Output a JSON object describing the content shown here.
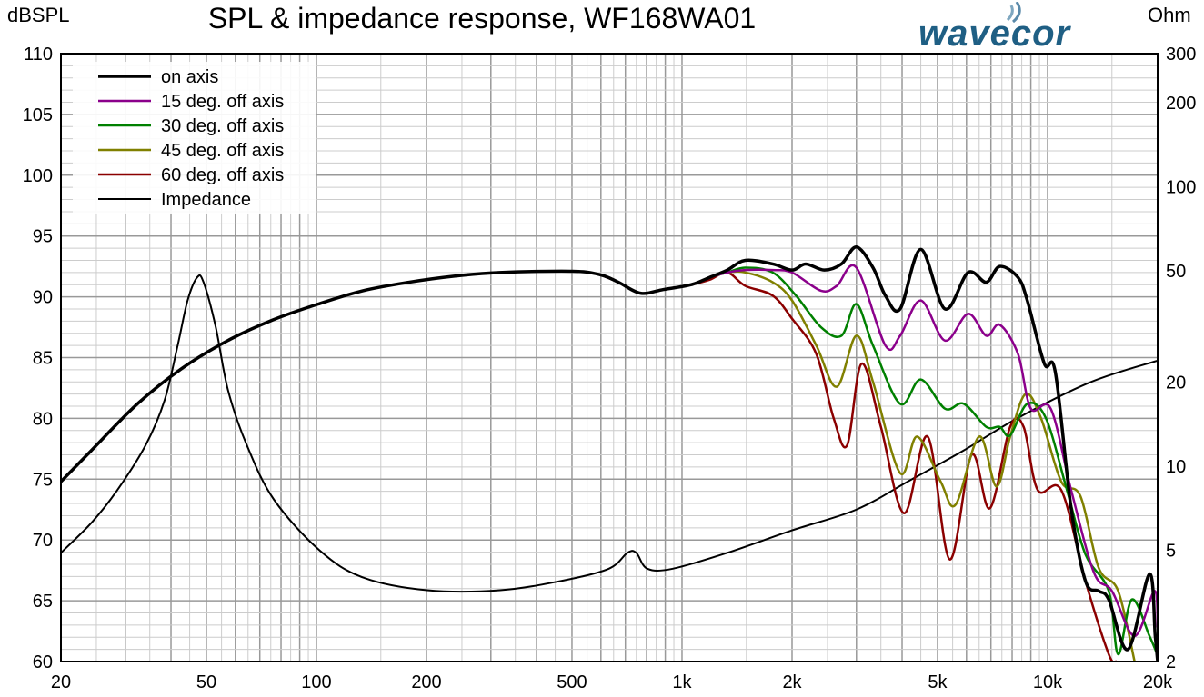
{
  "chart_data": {
    "type": "line",
    "title": "SPL & impedance response, WF168WA01",
    "ylabel": "dBSPL",
    "y2label": "Ohm",
    "brand": "wavecor",
    "xscale": "log",
    "xlim": [
      20,
      20000
    ],
    "ylim": [
      60,
      110
    ],
    "y2lim": [
      2,
      300
    ],
    "y2scale": "log",
    "grid": true,
    "legend_position": "top-left",
    "x_ticks": [
      {
        "v": 20,
        "label": "20"
      },
      {
        "v": 50,
        "label": "50"
      },
      {
        "v": 100,
        "label": "100"
      },
      {
        "v": 200,
        "label": "200"
      },
      {
        "v": 500,
        "label": "500"
      },
      {
        "v": 1000,
        "label": "1k"
      },
      {
        "v": 2000,
        "label": "2k"
      },
      {
        "v": 5000,
        "label": "5k"
      },
      {
        "v": 10000,
        "label": "10k"
      },
      {
        "v": 20000,
        "label": "20k"
      }
    ],
    "y_ticks": [
      {
        "v": 60,
        "label": "60"
      },
      {
        "v": 65,
        "label": "65"
      },
      {
        "v": 70,
        "label": "70"
      },
      {
        "v": 75,
        "label": "75"
      },
      {
        "v": 80,
        "label": "80"
      },
      {
        "v": 85,
        "label": "85"
      },
      {
        "v": 90,
        "label": "90"
      },
      {
        "v": 95,
        "label": "95"
      },
      {
        "v": 100,
        "label": "100"
      },
      {
        "v": 105,
        "label": "105"
      },
      {
        "v": 110,
        "label": "110"
      }
    ],
    "y2_ticks": [
      {
        "v": 2,
        "label": "2"
      },
      {
        "v": 5,
        "label": "5"
      },
      {
        "v": 10,
        "label": "10"
      },
      {
        "v": 20,
        "label": "20"
      },
      {
        "v": 50,
        "label": "50"
      },
      {
        "v": 100,
        "label": "100"
      },
      {
        "v": 200,
        "label": "200"
      },
      {
        "v": 300,
        "label": "300"
      }
    ],
    "series": [
      {
        "name": "on axis",
        "color": "#000000",
        "width": 3.5,
        "axis": "left",
        "points": [
          [
            20,
            74.8
          ],
          [
            24.3,
            77.4
          ],
          [
            32.4,
            81.2
          ],
          [
            42.8,
            84.1
          ],
          [
            57.2,
            86.4
          ],
          [
            76,
            88.1
          ],
          [
            101,
            89.4
          ],
          [
            134,
            90.5
          ],
          [
            179,
            91.2
          ],
          [
            238,
            91.7
          ],
          [
            317,
            92.0
          ],
          [
            502,
            92.1
          ],
          [
            600,
            91.8
          ],
          [
            670,
            91.2
          ],
          [
            770,
            90.3
          ],
          [
            890,
            90.6
          ],
          [
            1060,
            91.0
          ],
          [
            1190,
            91.6
          ],
          [
            1330,
            92.2
          ],
          [
            1490,
            93.0
          ],
          [
            1770,
            92.7
          ],
          [
            2000,
            92.2
          ],
          [
            2180,
            92.7
          ],
          [
            2450,
            92.2
          ],
          [
            2730,
            92.7
          ],
          [
            3000,
            94.1
          ],
          [
            3330,
            92.4
          ],
          [
            3600,
            90.1
          ],
          [
            3950,
            89.0
          ],
          [
            4500,
            93.9
          ],
          [
            5240,
            89.0
          ],
          [
            6060,
            92.0
          ],
          [
            6800,
            91.2
          ],
          [
            7400,
            92.5
          ],
          [
            8300,
            91.6
          ],
          [
            8800,
            89.7
          ],
          [
            9800,
            84.5
          ],
          [
            10500,
            83.8
          ],
          [
            11600,
            72.6
          ],
          [
            12700,
            66.6
          ],
          [
            13800,
            65.8
          ],
          [
            14700,
            65.1
          ],
          [
            16600,
            61.0
          ],
          [
            19000,
            67.2
          ],
          [
            19700,
            62.1
          ],
          [
            20000,
            60
          ]
        ]
      },
      {
        "name": "15 deg. off axis",
        "color": "#8b008b",
        "width": 2.5,
        "axis": "left",
        "points": [
          [
            600,
            91.8
          ],
          [
            670,
            91.2
          ],
          [
            770,
            90.3
          ],
          [
            890,
            90.6
          ],
          [
            1060,
            91.0
          ],
          [
            1190,
            91.6
          ],
          [
            1330,
            92.0
          ],
          [
            1490,
            92.2
          ],
          [
            1770,
            92.2
          ],
          [
            2000,
            92.0
          ],
          [
            2400,
            90.5
          ],
          [
            2650,
            90.9
          ],
          [
            3000,
            92.4
          ],
          [
            3600,
            86.0
          ],
          [
            3950,
            86.8
          ],
          [
            4500,
            89.7
          ],
          [
            5240,
            86.4
          ],
          [
            6060,
            88.6
          ],
          [
            6800,
            86.8
          ],
          [
            7400,
            87.7
          ],
          [
            8300,
            85.3
          ],
          [
            9000,
            80.8
          ],
          [
            10200,
            80.8
          ],
          [
            11600,
            74.1
          ],
          [
            13400,
            67.3
          ],
          [
            15000,
            65.8
          ],
          [
            17300,
            62.1
          ],
          [
            19600,
            65.8
          ],
          [
            20000,
            62.8
          ]
        ]
      },
      {
        "name": "30 deg. off axis",
        "color": "#008000",
        "width": 2.5,
        "axis": "left",
        "points": [
          [
            600,
            91.8
          ],
          [
            670,
            91.2
          ],
          [
            770,
            90.3
          ],
          [
            890,
            90.6
          ],
          [
            1060,
            91.0
          ],
          [
            1190,
            91.6
          ],
          [
            1330,
            92.0
          ],
          [
            1490,
            92.4
          ],
          [
            1770,
            92.0
          ],
          [
            2050,
            90.1
          ],
          [
            2400,
            87.5
          ],
          [
            2730,
            86.8
          ],
          [
            3000,
            89.4
          ],
          [
            3330,
            86.0
          ],
          [
            3950,
            81.2
          ],
          [
            4500,
            83.2
          ],
          [
            5240,
            80.8
          ],
          [
            5900,
            81.2
          ],
          [
            6800,
            79.3
          ],
          [
            7400,
            79.3
          ],
          [
            7900,
            78.6
          ],
          [
            8800,
            81.2
          ],
          [
            9900,
            80.0
          ],
          [
            11300,
            74.1
          ],
          [
            12700,
            68.8
          ],
          [
            14700,
            65.8
          ],
          [
            15600,
            60.6
          ],
          [
            17000,
            65.1
          ],
          [
            19000,
            62.1
          ],
          [
            20000,
            60.5
          ]
        ]
      },
      {
        "name": "45 deg. off axis",
        "color": "#808000",
        "width": 2.5,
        "axis": "left",
        "points": [
          [
            600,
            91.8
          ],
          [
            670,
            91.2
          ],
          [
            770,
            90.3
          ],
          [
            890,
            90.6
          ],
          [
            1060,
            91.0
          ],
          [
            1190,
            91.6
          ],
          [
            1330,
            92.0
          ],
          [
            1490,
            92.0
          ],
          [
            1770,
            91.2
          ],
          [
            2000,
            89.7
          ],
          [
            2330,
            86.0
          ],
          [
            2650,
            82.6
          ],
          [
            3000,
            86.8
          ],
          [
            3330,
            83.0
          ],
          [
            3950,
            75.5
          ],
          [
            4400,
            78.5
          ],
          [
            5100,
            74.8
          ],
          [
            5600,
            72.9
          ],
          [
            6500,
            78.5
          ],
          [
            7250,
            74.4
          ],
          [
            7900,
            78.5
          ],
          [
            8700,
            82.0
          ],
          [
            9600,
            80.0
          ],
          [
            10900,
            74.8
          ],
          [
            12300,
            73.6
          ],
          [
            13800,
            67.7
          ],
          [
            15600,
            65.8
          ],
          [
            17300,
            60
          ]
        ]
      },
      {
        "name": "60 deg. off axis",
        "color": "#8b0000",
        "width": 2.5,
        "axis": "left",
        "points": [
          [
            600,
            91.8
          ],
          [
            670,
            91.2
          ],
          [
            770,
            90.3
          ],
          [
            890,
            90.6
          ],
          [
            1060,
            91.0
          ],
          [
            1190,
            91.4
          ],
          [
            1330,
            92.0
          ],
          [
            1490,
            90.9
          ],
          [
            1770,
            90.1
          ],
          [
            2000,
            88.2
          ],
          [
            2330,
            85.3
          ],
          [
            2600,
            80.0
          ],
          [
            2830,
            77.8
          ],
          [
            3100,
            84.5
          ],
          [
            3500,
            79.3
          ],
          [
            4050,
            72.2
          ],
          [
            4700,
            78.5
          ],
          [
            5400,
            68.4
          ],
          [
            6200,
            77.0
          ],
          [
            6950,
            72.6
          ],
          [
            7900,
            79.3
          ],
          [
            8600,
            79.3
          ],
          [
            9400,
            74.1
          ],
          [
            10900,
            74.1
          ],
          [
            12700,
            66.6
          ],
          [
            14700,
            60.6
          ],
          [
            15400,
            60
          ]
        ]
      },
      {
        "name": "Impedance",
        "color": "#000000",
        "width": 2,
        "axis": "right",
        "points": [
          [
            20,
            4.9
          ],
          [
            24.3,
            6.3
          ],
          [
            28.5,
            8.2
          ],
          [
            34.1,
            11.9
          ],
          [
            38.4,
            17.2
          ],
          [
            41.7,
            27
          ],
          [
            44.4,
            39.2
          ],
          [
            47.2,
            47.5
          ],
          [
            49.1,
            45.6
          ],
          [
            53,
            31.6
          ],
          [
            57.3,
            18.7
          ],
          [
            64.5,
            11.9
          ],
          [
            76.5,
            7.6
          ],
          [
            102,
            5.0
          ],
          [
            134,
            4.0
          ],
          [
            201,
            3.6
          ],
          [
            318,
            3.6
          ],
          [
            473,
            3.9
          ],
          [
            631,
            4.3
          ],
          [
            709,
            4.9
          ],
          [
            750,
            4.9
          ],
          [
            804,
            4.3
          ],
          [
            944,
            4.3
          ],
          [
            1330,
            4.9
          ],
          [
            2000,
            5.9
          ],
          [
            3000,
            7.0
          ],
          [
            4200,
            8.9
          ],
          [
            5900,
            11.4
          ],
          [
            8300,
            14.9
          ],
          [
            13100,
            20
          ],
          [
            20000,
            23.9
          ]
        ]
      }
    ]
  }
}
